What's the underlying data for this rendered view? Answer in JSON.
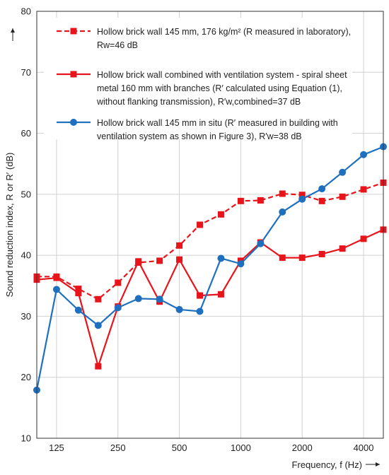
{
  "chart_data": {
    "type": "line",
    "x": [
      100,
      125,
      160,
      200,
      250,
      315,
      400,
      500,
      630,
      800,
      1000,
      1250,
      1600,
      2000,
      2500,
      3150,
      4000,
      5000
    ],
    "x_tick_labels": [
      "125",
      "250",
      "500",
      "1000",
      "2000",
      "4000"
    ],
    "x_tick_values": [
      125,
      250,
      500,
      1000,
      2000,
      4000
    ],
    "xlabel": "Frequency, f (Hz)",
    "ylabel": "Sound reduction index, R or R′ (dB)",
    "ylim": [
      10,
      80
    ],
    "y_tick_labels": [
      "10",
      "20",
      "30",
      "40",
      "50",
      "60",
      "70",
      "80"
    ],
    "y_tick_values": [
      10,
      20,
      30,
      40,
      50,
      60,
      70,
      80
    ],
    "x_scale": "log",
    "grid": "horizontal and vertical",
    "legend_position": "top-left inside plot",
    "series": [
      {
        "name": "Hollow brick wall 145 mm, 176 kg/m² (R measured in laboratory), Rw=46 dB",
        "legend_lines": [
          "Hollow brick wall 145 mm, 176 kg/m² (R measured in laboratory),",
          "Rw=46 dB"
        ],
        "color": "#e8141b",
        "line_style": "dashed",
        "marker": "square",
        "values": [
          36.5,
          36.5,
          34.5,
          32.8,
          35.5,
          38.8,
          39.1,
          41.6,
          45.0,
          46.7,
          48.9,
          49.0,
          50.1,
          49.9,
          48.9,
          49.6,
          50.8,
          51.9
        ]
      },
      {
        "name": "Hollow brick wall combined with ventilation system - spiral sheet metal 160 mm with branches (R′ calculated using Equation (1), without flanking transmission), R′w,combined=37 dB",
        "legend_lines": [
          "Hollow brick wall combined with ventilation system - spiral sheet",
          "metal 160 mm with branches (R′ calculated using Equation (1),",
          "without flanking transmission), R′w,combined=37 dB"
        ],
        "color": "#e8141b",
        "line_style": "solid",
        "marker": "square",
        "values": [
          36.0,
          36.3,
          33.8,
          21.8,
          31.6,
          39.0,
          32.4,
          39.3,
          33.4,
          33.6,
          39.1,
          42.1,
          39.6,
          39.6,
          40.2,
          41.1,
          42.7,
          44.2
        ]
      },
      {
        "name": "Hollow brick wall 145 mm in situ (R′ measured in building with ventilation system as shown in Figure 3), R′w=38 dB",
        "legend_lines": [
          "Hollow brick wall 145 mm in situ (R′ measured in building with",
          "ventilation system as shown in Figure 3), R′w=38 dB"
        ],
        "color": "#1f6fbf",
        "line_style": "solid",
        "marker": "circle",
        "values": [
          17.9,
          34.4,
          31.0,
          28.5,
          31.4,
          32.9,
          32.8,
          31.1,
          30.8,
          39.5,
          38.6,
          41.9,
          47.1,
          49.2,
          50.9,
          53.6,
          56.5,
          57.8
        ]
      }
    ]
  }
}
